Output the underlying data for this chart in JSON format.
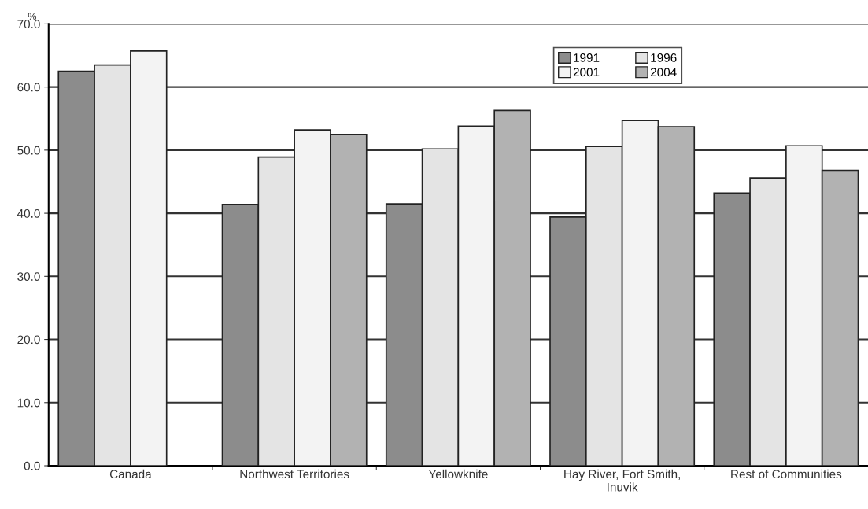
{
  "chart_data": {
    "type": "bar",
    "ylabel": "%",
    "categories": [
      "Canada",
      "Northwest Territories",
      "Yellowknife",
      "Hay River, Fort Smith,\nInuvik",
      "Rest of Communities"
    ],
    "series": [
      {
        "name": "1991",
        "color": "#8c8c8c",
        "values": [
          62.5,
          41.4,
          41.5,
          39.4,
          43.2
        ]
      },
      {
        "name": "1996",
        "color": "#e4e4e4",
        "values": [
          63.5,
          48.9,
          50.2,
          50.6,
          45.6
        ]
      },
      {
        "name": "2001",
        "color": "#f3f3f3",
        "values": [
          65.7,
          53.2,
          53.8,
          54.7,
          50.7
        ]
      },
      {
        "name": "2004",
        "color": "#b2b2b2",
        "values": [
          null,
          52.5,
          56.3,
          53.7,
          46.8
        ]
      }
    ],
    "ylim": [
      0,
      70
    ],
    "yticks": [
      {
        "value": 0,
        "label": "0.0"
      },
      {
        "value": 10,
        "label": "10.0"
      },
      {
        "value": 20,
        "label": "20.0"
      },
      {
        "value": 30,
        "label": "30.0"
      },
      {
        "value": 40,
        "label": "40.0"
      },
      {
        "value": 50,
        "label": "50.0"
      },
      {
        "value": 60,
        "label": "60.0"
      },
      {
        "value": 70,
        "label": "70.0"
      }
    ],
    "grid": "y",
    "legend": "top right"
  }
}
